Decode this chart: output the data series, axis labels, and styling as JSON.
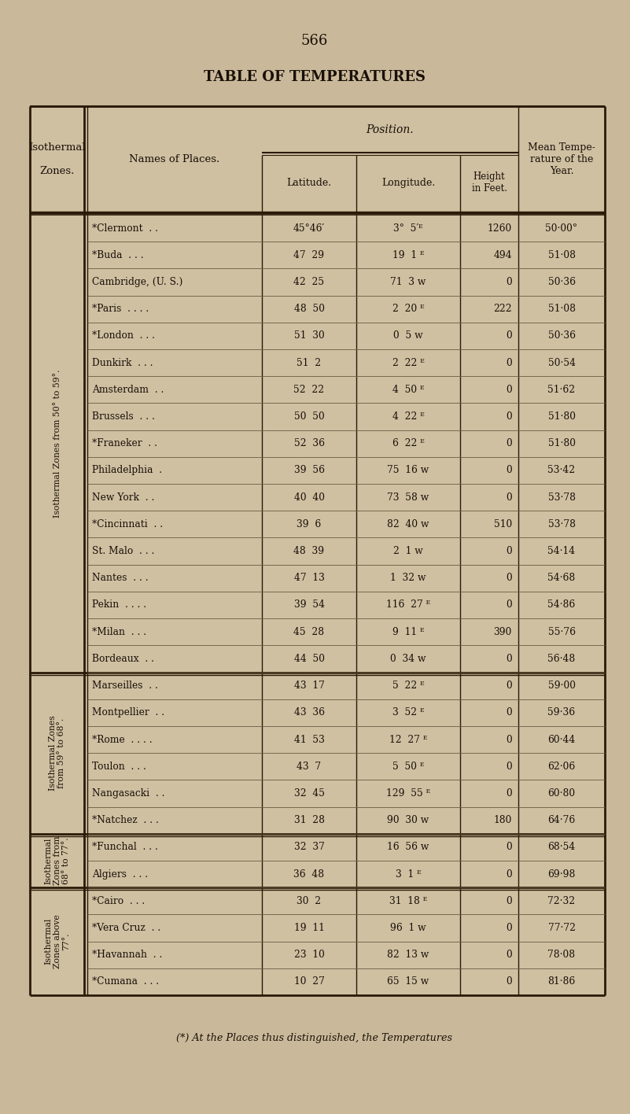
{
  "page_number": "566",
  "title": "TABLE OF TEMPERATURES",
  "bg_color": "#c9b99a",
  "table_bg": "#cfc0a2",
  "line_color": "#2a1a08",
  "text_color": "#1a1008",
  "zone_groups": [
    {
      "zone_label": "Isothermal Zones from 50° to 59°.",
      "rows": [
        [
          "*Clermont  . .",
          "45°46′",
          "3°  5′ᴱ",
          "1260",
          "50·00°"
        ],
        [
          "*Buda  . . .",
          "47  29",
          "19  1 ᴱ",
          "494",
          "51·08"
        ],
        [
          "Cambridge, (U. S.)",
          "42  25",
          "71  3 w",
          "0",
          "50·36"
        ],
        [
          "*Paris  . . . .",
          "48  50",
          "2  20 ᴱ",
          "222",
          "51·08"
        ],
        [
          "*London  . . .",
          "51  30",
          "0  5 w",
          "0",
          "50·36"
        ],
        [
          "Dunkirk  . . .",
          "51  2",
          "2  22 ᴱ",
          "0",
          "50·54"
        ],
        [
          "Amsterdam  . .",
          "52  22",
          "4  50 ᴱ",
          "0",
          "51·62"
        ],
        [
          "Brussels  . . .",
          "50  50",
          "4  22 ᴱ",
          "0",
          "51·80"
        ],
        [
          "*Franeker  . .",
          "52  36",
          "6  22 ᴱ",
          "0",
          "51·80"
        ],
        [
          "Philadelphia  .",
          "39  56",
          "75  16 w",
          "0",
          "53·42"
        ],
        [
          "New York  . .",
          "40  40",
          "73  58 w",
          "0",
          "53·78"
        ],
        [
          "*Cincinnati  . .",
          "39  6",
          "82  40 w",
          "510",
          "53·78"
        ],
        [
          "St. Malo  . . .",
          "48  39",
          "2  1 w",
          "0",
          "54·14"
        ],
        [
          "Nantes  . . .",
          "47  13",
          "1  32 w",
          "0",
          "54·68"
        ],
        [
          "Pekin  . . . .",
          "39  54",
          "116  27 ᴱ",
          "0",
          "54·86"
        ],
        [
          "*Milan  . . .",
          "45  28",
          "9  11 ᴱ",
          "390",
          "55·76"
        ],
        [
          "Bordeaux  . .",
          "44  50",
          "0  34 w",
          "0",
          "56·48"
        ]
      ]
    },
    {
      "zone_label": "Isothermal Zones\nfrom 59° to 68°.",
      "rows": [
        [
          "Marseilles  . .",
          "43  17",
          "5  22 ᴱ",
          "0",
          "59·00"
        ],
        [
          "Montpellier  . .",
          "43  36",
          "3  52 ᴱ",
          "0",
          "59·36"
        ],
        [
          "*Rome  . . . .",
          "41  53",
          "12  27 ᴱ",
          "0",
          "60·44"
        ],
        [
          "Toulon  . . .",
          "43  7",
          "5  50 ᴱ",
          "0",
          "62·06"
        ],
        [
          "Nangasacki  . .",
          "32  45",
          "129  55 ᴱ",
          "0",
          "60·80"
        ],
        [
          "*Natchez  . . .",
          "31  28",
          "90  30 w",
          "180",
          "64·76"
        ]
      ]
    },
    {
      "zone_label": "Isothermal\nZones from\n68° to 77°.",
      "rows": [
        [
          "*Funchal  . . .",
          "32  37",
          "16  56 w",
          "0",
          "68·54"
        ],
        [
          "Algiers  . . .",
          "36  48",
          "3  1 ᴱ",
          "0",
          "69·98"
        ]
      ]
    },
    {
      "zone_label": "Isothermal\nZones above\n77°.",
      "rows": [
        [
          "*Cairo  . . .",
          "30  2",
          "31  18 ᴱ",
          "0",
          "72·32"
        ],
        [
          "*Vera Cruz  . .",
          "19  11",
          "96  1 w",
          "0",
          "77·72"
        ],
        [
          "*Havannah  . .",
          "23  10",
          "82  13 w",
          "0",
          "78·08"
        ],
        [
          "*Cumana  . . .",
          "10  27",
          "65  15 w",
          "0",
          "81·86"
        ]
      ]
    }
  ],
  "footnote": "(*) At the Places thus distinguished, the Temperatures"
}
